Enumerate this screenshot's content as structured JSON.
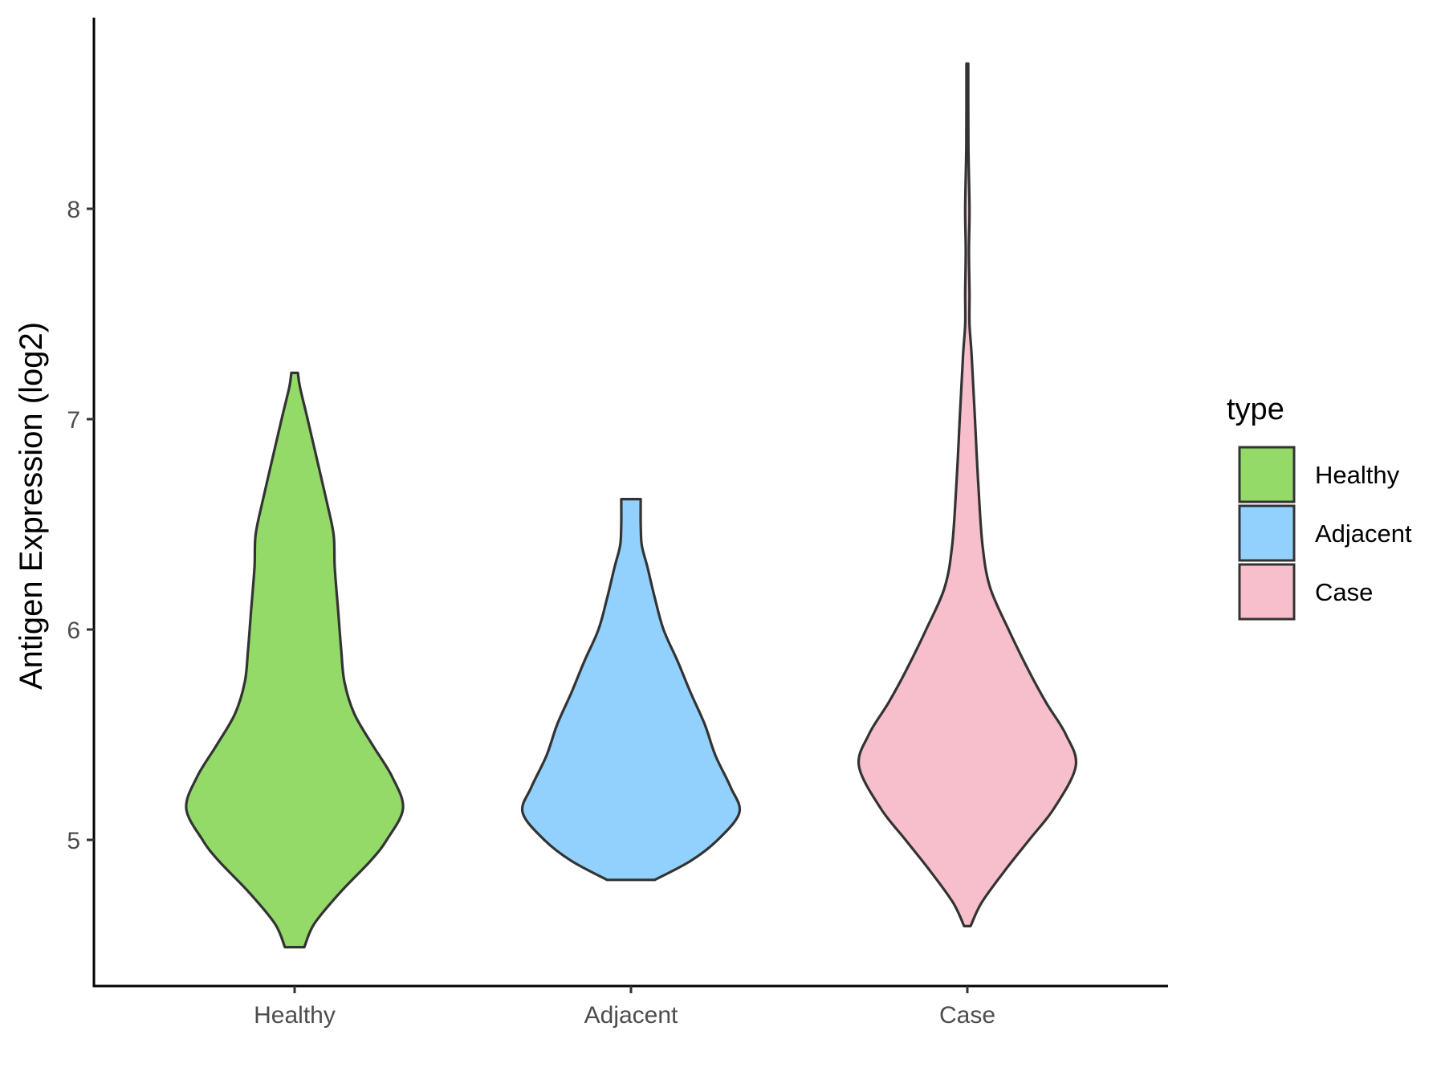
{
  "chart_data": {
    "type": "violin",
    "xlabel": "",
    "ylabel": "Antigen Expression (log2)",
    "ylim": [
      4.4,
      9.0
    ],
    "yticks": [
      "5",
      "6",
      "7",
      "8"
    ],
    "categories": [
      "Healthy",
      "Adjacent",
      "Case"
    ],
    "grid": false,
    "legend": {
      "title": "type",
      "position": "right",
      "items": [
        {
          "label": "Healthy",
          "color": "#93DA68"
        },
        {
          "label": "Adjacent",
          "color": "#92D1FE"
        },
        {
          "label": "Case",
          "color": "#F7BFCB"
        }
      ]
    },
    "outline_color": "#333333",
    "series": [
      {
        "name": "Healthy",
        "color": "#93DA68",
        "min": 4.49,
        "max": 7.22,
        "density": [
          [
            4.49,
            0.09
          ],
          [
            4.6,
            0.18
          ],
          [
            4.75,
            0.42
          ],
          [
            4.9,
            0.7
          ],
          [
            5.0,
            0.85
          ],
          [
            5.15,
            1.0
          ],
          [
            5.3,
            0.9
          ],
          [
            5.45,
            0.72
          ],
          [
            5.6,
            0.55
          ],
          [
            5.75,
            0.46
          ],
          [
            5.9,
            0.43
          ],
          [
            6.1,
            0.4
          ],
          [
            6.3,
            0.37
          ],
          [
            6.45,
            0.36
          ],
          [
            6.6,
            0.3
          ],
          [
            6.8,
            0.21
          ],
          [
            7.0,
            0.12
          ],
          [
            7.15,
            0.05
          ],
          [
            7.22,
            0.03
          ]
        ]
      },
      {
        "name": "Adjacent",
        "color": "#92D1FE",
        "min": 4.81,
        "max": 6.62,
        "density": [
          [
            4.81,
            0.22
          ],
          [
            4.9,
            0.55
          ],
          [
            5.0,
            0.8
          ],
          [
            5.13,
            1.0
          ],
          [
            5.25,
            0.92
          ],
          [
            5.4,
            0.78
          ],
          [
            5.55,
            0.68
          ],
          [
            5.7,
            0.55
          ],
          [
            5.85,
            0.43
          ],
          [
            6.0,
            0.3
          ],
          [
            6.15,
            0.22
          ],
          [
            6.3,
            0.15
          ],
          [
            6.4,
            0.1
          ],
          [
            6.5,
            0.09
          ],
          [
            6.62,
            0.09
          ]
        ]
      },
      {
        "name": "Case",
        "color": "#F7BFCB",
        "min": 4.59,
        "max": 8.69,
        "density": [
          [
            4.59,
            0.03
          ],
          [
            4.7,
            0.13
          ],
          [
            4.85,
            0.34
          ],
          [
            5.0,
            0.57
          ],
          [
            5.15,
            0.8
          ],
          [
            5.35,
            1.0
          ],
          [
            5.5,
            0.91
          ],
          [
            5.65,
            0.73
          ],
          [
            5.8,
            0.57
          ],
          [
            6.0,
            0.38
          ],
          [
            6.2,
            0.21
          ],
          [
            6.4,
            0.14
          ],
          [
            6.7,
            0.1
          ],
          [
            7.0,
            0.07
          ],
          [
            7.3,
            0.04
          ],
          [
            7.45,
            0.02
          ],
          [
            7.6,
            0.02
          ],
          [
            7.8,
            0.015
          ],
          [
            8.0,
            0.02
          ],
          [
            8.3,
            0.01
          ],
          [
            8.69,
            0.008
          ]
        ]
      }
    ]
  }
}
